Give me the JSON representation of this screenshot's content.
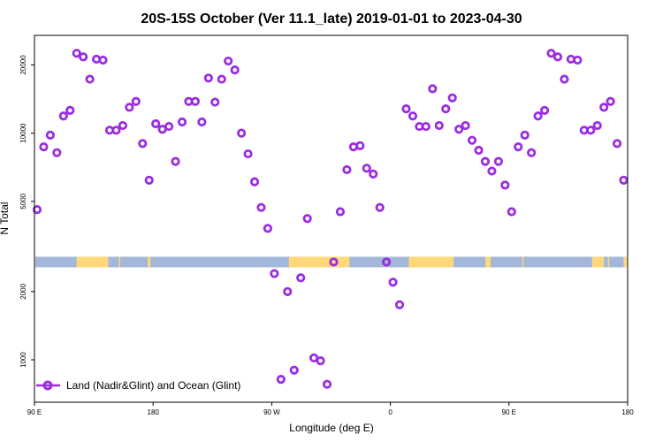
{
  "chart_data": {
    "type": "scatter",
    "title": "20S-15S October (Ver 11.1_late)   2019-01-01 to 2023-04-30",
    "xlabel": "Longitude (deg E)",
    "ylabel": "N Total",
    "x_ticks": [
      "90 E",
      "180",
      "90 W",
      "0",
      "90 E",
      "180"
    ],
    "x_tick_positions": [
      90,
      180,
      270,
      360,
      450,
      540
    ],
    "xlim": [
      90,
      540
    ],
    "y_scale": "log",
    "ylim": [
      650,
      27000
    ],
    "y_ticks": [
      1000,
      2000,
      5000,
      10000,
      20000
    ],
    "grid": false,
    "legend": {
      "position": "bottom-left",
      "entries": [
        "Land (Nadir&Glint) and Ocean (Glint)"
      ]
    },
    "colors": {
      "series": "#9b2de0",
      "ocean": "#a3b8d8",
      "land": "#ffd87a"
    },
    "band_y": 2700,
    "land_segments": [
      [
        122,
        146
      ],
      [
        154,
        155
      ],
      [
        176,
        178
      ],
      [
        283,
        329
      ],
      [
        374,
        404
      ],
      [
        404,
        406
      ],
      [
        406,
        408
      ],
      [
        432,
        436
      ],
      [
        460,
        461
      ],
      [
        513,
        522
      ],
      [
        525,
        526
      ],
      [
        537,
        540
      ],
      [
        542,
        543
      ]
    ],
    "series": [
      {
        "name": "Land (Nadir&Glint) and Ocean (Glint)",
        "x": [
          92,
          97,
          102,
          107,
          112,
          117,
          122,
          127,
          132,
          137,
          142,
          147,
          152,
          157,
          162,
          167,
          172,
          177,
          182,
          187,
          192,
          197,
          202,
          207,
          212,
          217,
          222,
          227,
          232,
          237,
          242,
          247,
          252,
          257,
          262,
          267,
          272,
          277,
          282,
          287,
          292,
          297,
          302,
          307,
          312,
          317,
          322,
          327,
          332,
          337,
          342,
          347,
          352,
          357,
          362,
          367,
          372,
          377,
          382,
          387,
          392,
          397,
          402,
          407,
          412,
          417,
          422,
          427,
          432,
          437,
          442,
          447,
          452,
          457,
          462,
          467,
          472,
          477,
          482,
          487,
          492,
          497,
          502,
          507,
          512,
          517,
          522,
          527,
          532,
          537
        ],
        "values": [
          4600,
          8700,
          9800,
          8200,
          11900,
          12600,
          22500,
          21700,
          17300,
          21200,
          21000,
          10300,
          10300,
          10800,
          13000,
          13800,
          9000,
          6200,
          11000,
          10400,
          10700,
          7500,
          11200,
          13800,
          13800,
          11200,
          17500,
          13700,
          17300,
          20800,
          19000,
          10000,
          8100,
          6100,
          4700,
          3800,
          2400,
          820,
          2000,
          900,
          2300,
          4200,
          1020,
          990,
          780,
          2700,
          4500,
          6900,
          8700,
          8800,
          7000,
          6600,
          4700,
          2700,
          2200,
          1750,
          12800,
          11900,
          10700,
          10700,
          15700,
          10800,
          12800,
          14300,
          10400,
          10800,
          9300,
          8400,
          7500,
          6800,
          7500,
          5900,
          4500,
          8700,
          9800,
          8200,
          11900,
          12600,
          22500,
          21700,
          17300,
          21200,
          21000,
          10300,
          10300,
          10800,
          13000,
          13800,
          9000,
          6200
        ]
      }
    ]
  }
}
